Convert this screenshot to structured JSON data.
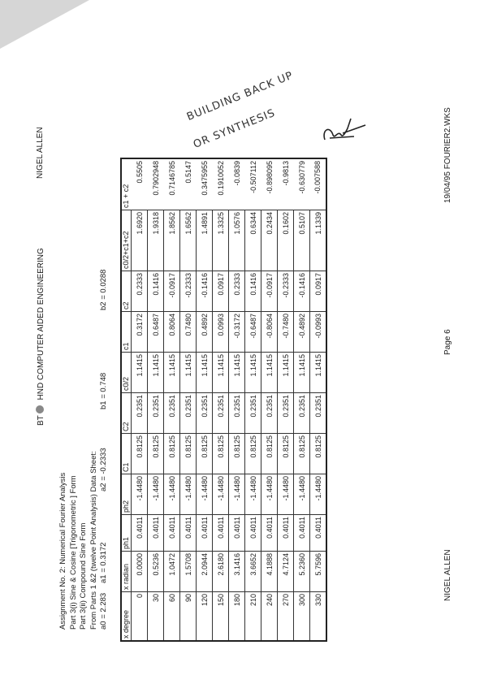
{
  "header": {
    "left": "BT",
    "center": "HND COMPUTER AIDED ENGINEERING",
    "right": "NIGEL ALLEN"
  },
  "title": {
    "line1": "Assignment No. 2: Numerical Fourier Analysis",
    "line2": "Part 3(i) Sine & Cosine [Trigonometric ] Form",
    "line3": "Part 3(ii) Compound Sine Form"
  },
  "params": {
    "heading": "From Parts 1 &2 (twelve Point Analysis) Data Sheet:",
    "a0": "a0 = 2.283",
    "a1": "a1 = 0.3172",
    "a2": "a2 = -0.2333",
    "b1": "b1 = 0.748",
    "b2": "b2 = 0.0288"
  },
  "table": {
    "columns": [
      "x degree",
      "x radian",
      "ph1",
      "ph2",
      "C1",
      "C2",
      "c0/2",
      "c1",
      "c2",
      "c0/2+c1+c2",
      "c1 + c2"
    ],
    "rows": [
      [
        "0",
        "0.0000",
        "0.4011",
        "-1.4480",
        "0.8125",
        "0.2351",
        "1.1415",
        "0.3172",
        "0.2333",
        "1.6920",
        "0.5505"
      ],
      [
        "30",
        "0.5236",
        "0.4011",
        "-1.4480",
        "0.8125",
        "0.2351",
        "1.1415",
        "0.6487",
        "0.1416",
        "1.9318",
        "0.7902948"
      ],
      [
        "60",
        "1.0472",
        "0.4011",
        "-1.4480",
        "0.8125",
        "0.2351",
        "1.1415",
        "0.8064",
        "-0.0917",
        "1.8562",
        "0.7146785"
      ],
      [
        "90",
        "1.5708",
        "0.4011",
        "-1.4480",
        "0.8125",
        "0.2351",
        "1.1415",
        "0.7480",
        "-0.2333",
        "1.6562",
        "0.5147"
      ],
      [
        "120",
        "2.0944",
        "0.4011",
        "-1.4480",
        "0.8125",
        "0.2351",
        "1.1415",
        "0.4892",
        "-0.1416",
        "1.4891",
        "0.3475955"
      ],
      [
        "150",
        "2.6180",
        "0.4011",
        "-1.4480",
        "0.8125",
        "0.2351",
        "1.1415",
        "0.0993",
        "0.0917",
        "1.3325",
        "0.1910052"
      ],
      [
        "180",
        "3.1416",
        "0.4011",
        "-1.4480",
        "0.8125",
        "0.2351",
        "1.1415",
        "-0.3172",
        "0.2333",
        "1.0576",
        "-0.0839"
      ],
      [
        "210",
        "3.6652",
        "0.4011",
        "-1.4480",
        "0.8125",
        "0.2351",
        "1.1415",
        "-0.6487",
        "0.1416",
        "0.6344",
        "-0.507112"
      ],
      [
        "240",
        "4.1888",
        "0.4011",
        "-1.4480",
        "0.8125",
        "0.2351",
        "1.1415",
        "-0.8064",
        "-0.0917",
        "0.2434",
        "-0.898095"
      ],
      [
        "270",
        "4.7124",
        "0.4011",
        "-1.4480",
        "0.8125",
        "0.2351",
        "1.1415",
        "-0.7480",
        "-0.2333",
        "0.1602",
        "-0.9813"
      ],
      [
        "300",
        "5.2360",
        "0.4011",
        "-1.4480",
        "0.8125",
        "0.2351",
        "1.1415",
        "-0.4892",
        "-0.1416",
        "0.5107",
        "-0.630779"
      ],
      [
        "330",
        "5.7596",
        "0.4011",
        "-1.4480",
        "0.8125",
        "0.2351",
        "1.1415",
        "-0.0993",
        "0.0917",
        "1.1339",
        "-0.007588"
      ]
    ]
  },
  "footer": {
    "left": "NIGEL ALLEN",
    "center": "Page 6",
    "right": "19/04/95 FOURIER2.WKS"
  },
  "handwriting": {
    "line1": "BUILDING BACK UP",
    "line2": "OR SYNTHESIS",
    "signature": "initials"
  }
}
